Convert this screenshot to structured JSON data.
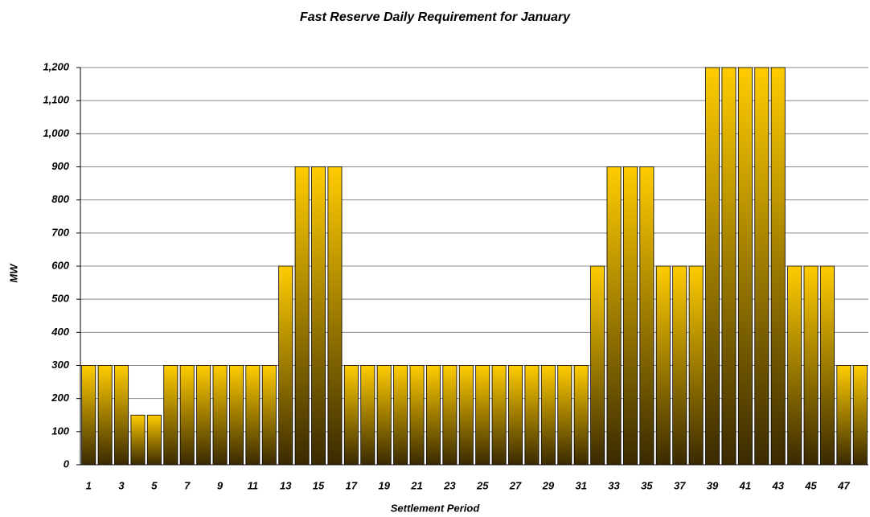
{
  "chart_data": {
    "type": "bar",
    "title": "Fast Reserve Daily Requirement for January",
    "x_label": "Settlement Period",
    "y_label": "MW",
    "categories": [
      "1",
      null,
      "3",
      null,
      "5",
      null,
      "7",
      null,
      "9",
      null,
      "11",
      null,
      "13",
      null,
      "15",
      null,
      "17",
      null,
      "19",
      null,
      "21",
      null,
      "23",
      null,
      "25",
      null,
      "27",
      null,
      "29",
      null,
      "31",
      null,
      "33",
      null,
      "35",
      null,
      "37",
      null,
      "39",
      null,
      "41",
      null,
      "43",
      null,
      "45",
      null,
      "47",
      null
    ],
    "values": [
      300,
      300,
      300,
      150,
      150,
      300,
      300,
      300,
      300,
      300,
      300,
      300,
      600,
      900,
      900,
      900,
      300,
      300,
      300,
      300,
      300,
      300,
      300,
      300,
      300,
      300,
      300,
      300,
      300,
      300,
      300,
      600,
      900,
      900,
      900,
      600,
      600,
      600,
      1200,
      1200,
      1200,
      1200,
      1200,
      600,
      600,
      600,
      300,
      300
    ],
    "color": "#ffcc00",
    "ylim": [
      0,
      1200
    ],
    "yticks": [
      0,
      100,
      200,
      300,
      400,
      500,
      600,
      700,
      800,
      900,
      {
        "value": 1000,
        "label": "1,000"
      },
      {
        "value": 1100,
        "label": "1,100"
      },
      {
        "value": 1200,
        "label": "1,200"
      }
    ],
    "grid": true
  }
}
